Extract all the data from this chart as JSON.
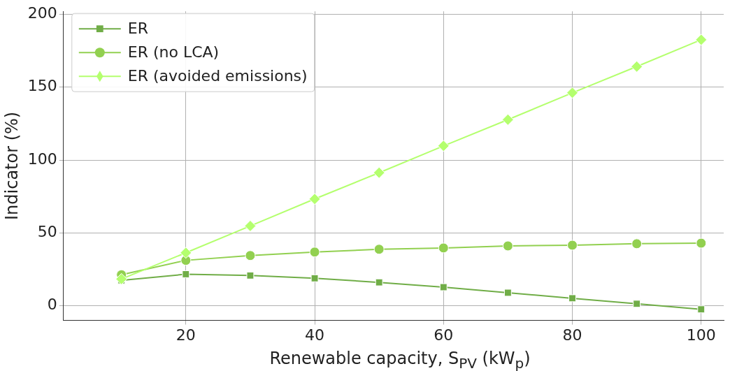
{
  "chart_data": {
    "type": "line",
    "xlabel": "Renewable capacity, $_{}$S$_{PV}$ (kW$_{p}$)",
    "ylabel": "Indicator (%)",
    "x": [
      10,
      20,
      30,
      40,
      50,
      60,
      70,
      80,
      90,
      100
    ],
    "xlim": [
      1,
      103.5
    ],
    "xticks": [
      20,
      40,
      60,
      80,
      100
    ],
    "ylim": [
      -10,
      202
    ],
    "yticks": [
      0,
      50,
      100,
      150,
      200
    ],
    "grid": true,
    "legend": "top left",
    "line_style": "solid",
    "series": [
      {
        "name": "ER",
        "color": "#70ad47",
        "marker": "square",
        "values": [
          17.5,
          21.7,
          20.8,
          18.9,
          16.1,
          12.8,
          9.0,
          5.2,
          1.4,
          -2.4
        ]
      },
      {
        "name": "ER (no LCA)",
        "color": "#92d050",
        "marker": "circle",
        "values": [
          21.3,
          31.2,
          34.5,
          36.9,
          38.8,
          39.7,
          41.1,
          41.6,
          42.6,
          43.0
        ]
      },
      {
        "name": "ER (avoided emissions)",
        "color": "#b4ff6e",
        "marker": "diamond",
        "values": [
          18.4,
          36.4,
          54.8,
          73.3,
          91.3,
          109.7,
          127.7,
          146.1,
          164.1,
          182.5
        ]
      }
    ]
  }
}
